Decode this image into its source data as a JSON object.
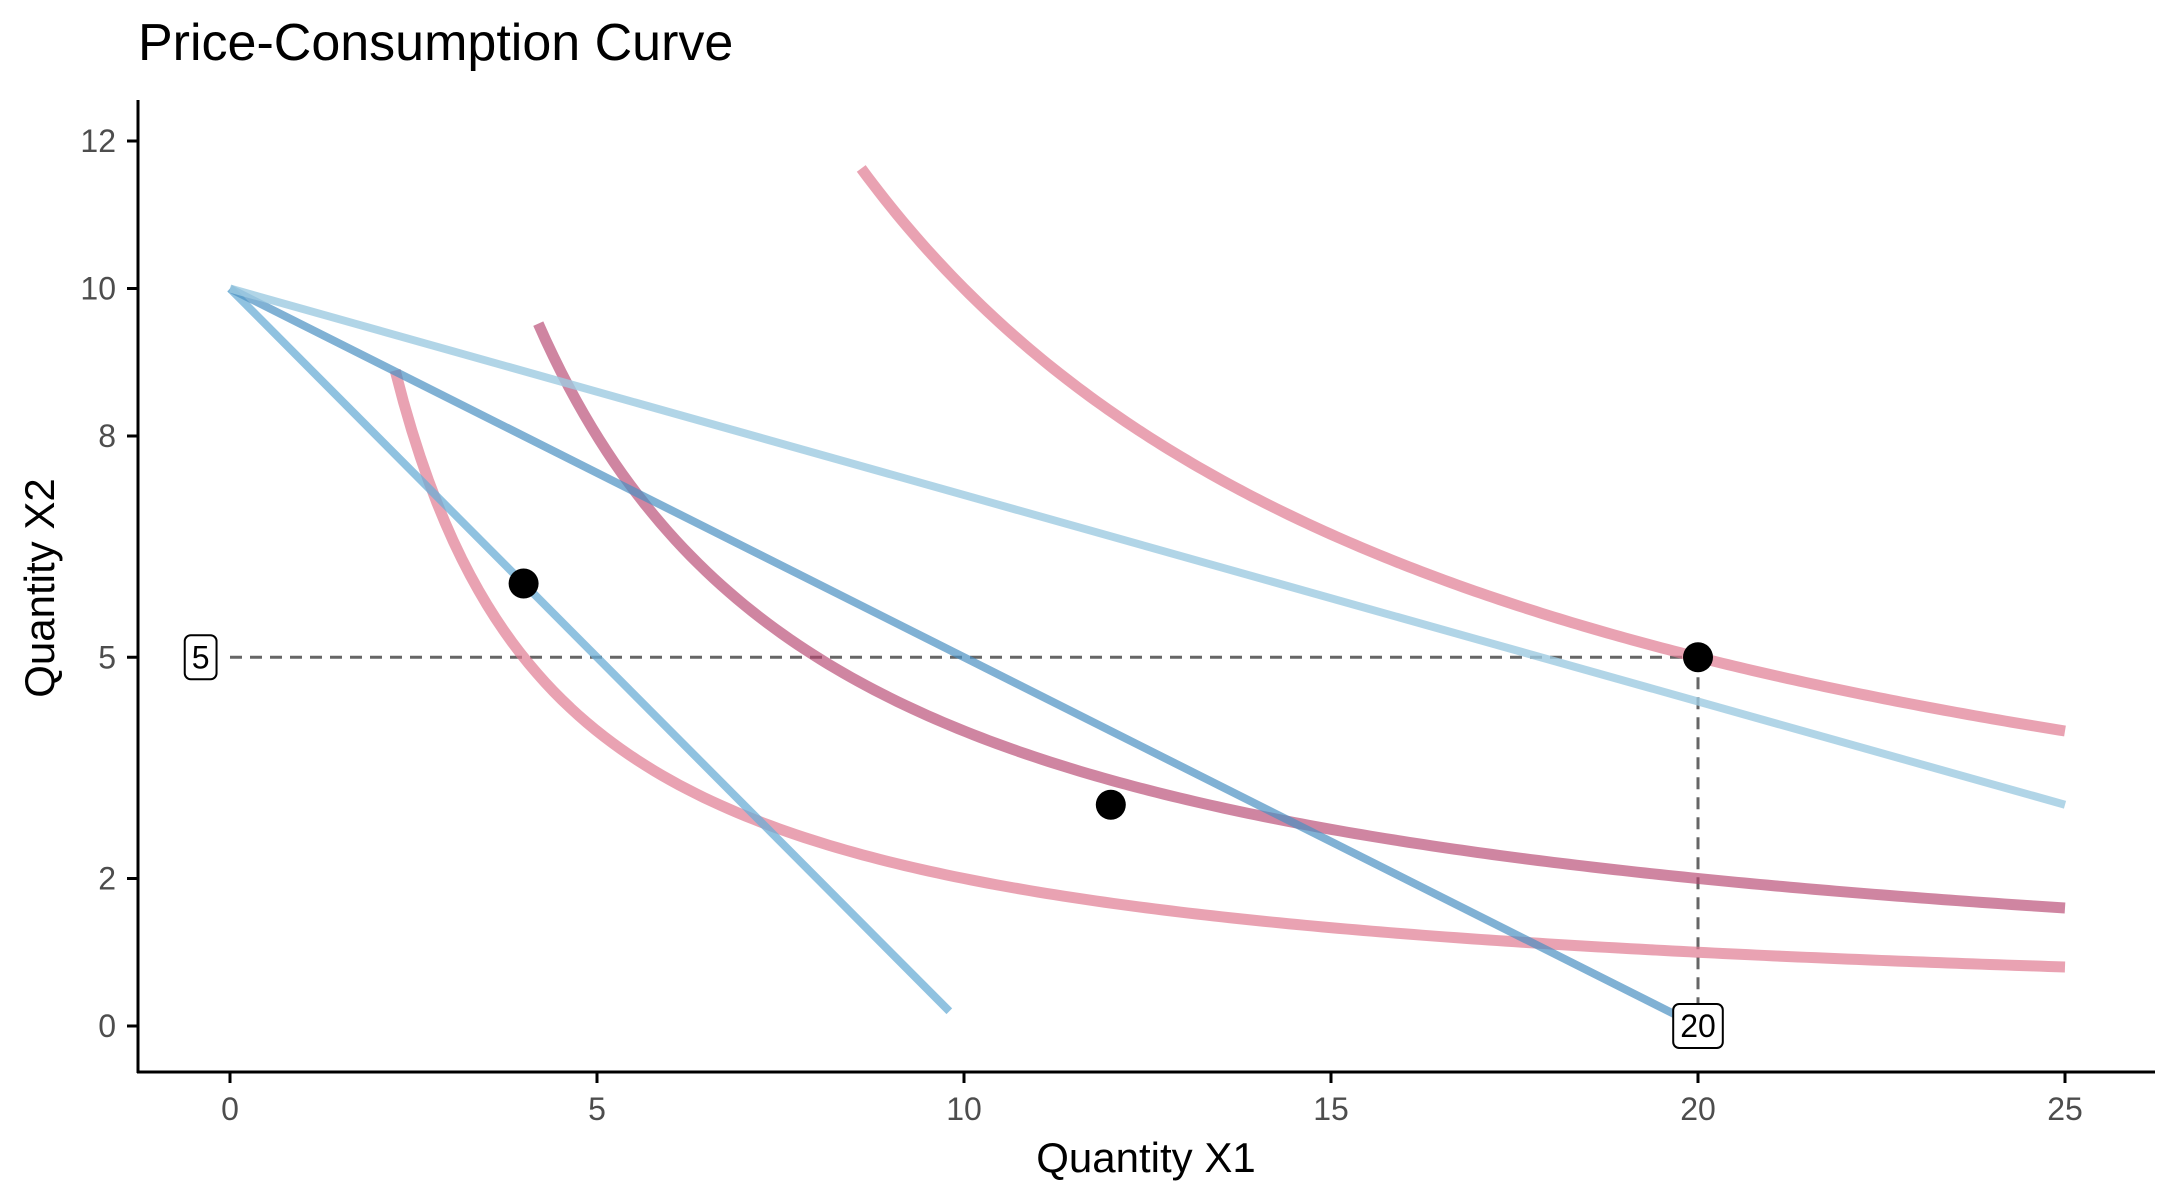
{
  "chart_data": {
    "type": "line",
    "title": "Price-Consumption Curve",
    "xlabel": "Quantity X1",
    "ylabel": "Quantity X2",
    "xlim": [
      -1.25,
      26.5
    ],
    "ylim": [
      -1.2,
      12.5
    ],
    "x_ticks": [
      0,
      5,
      10,
      15,
      20,
      25
    ],
    "y_ticks": [
      0,
      2,
      5,
      8,
      10,
      12
    ],
    "grid": false,
    "legend": "none",
    "budget_lines": [
      {
        "color": "#6baed6",
        "opacity": 0.75,
        "points": [
          [
            0,
            10
          ],
          [
            9.8,
            0.2
          ]
        ]
      },
      {
        "color": "#4a90c2",
        "opacity": 0.7,
        "points": [
          [
            0,
            10
          ],
          [
            19.7,
            0.15
          ]
        ]
      },
      {
        "color": "#9ecae1",
        "opacity": 0.8,
        "points": [
          [
            0,
            10
          ],
          [
            25,
            3.0
          ]
        ]
      }
    ],
    "indifference_curves": [
      {
        "color": "#e07b91",
        "opacity": 0.7,
        "k": 20,
        "x_range": [
          2.25,
          25
        ]
      },
      {
        "color": "#b5436e",
        "opacity": 0.65,
        "k": 40,
        "x_range": [
          4.2,
          25
        ]
      },
      {
        "color": "#e07b91",
        "opacity": 0.7,
        "k": 100,
        "x_range": [
          8.6,
          25
        ]
      }
    ],
    "points": [
      {
        "x": 4,
        "y": 6.0
      },
      {
        "x": 12,
        "y": 3.0
      },
      {
        "x": 20,
        "y": 5.0
      }
    ],
    "guides": [
      {
        "from": [
          0,
          5
        ],
        "to": [
          20,
          5
        ]
      },
      {
        "from": [
          20,
          5
        ],
        "to": [
          20,
          0
        ]
      }
    ],
    "annotations": [
      {
        "text": "5",
        "x": -0.4,
        "y": 5
      },
      {
        "text": "20",
        "x": 20,
        "y": 0
      }
    ]
  }
}
